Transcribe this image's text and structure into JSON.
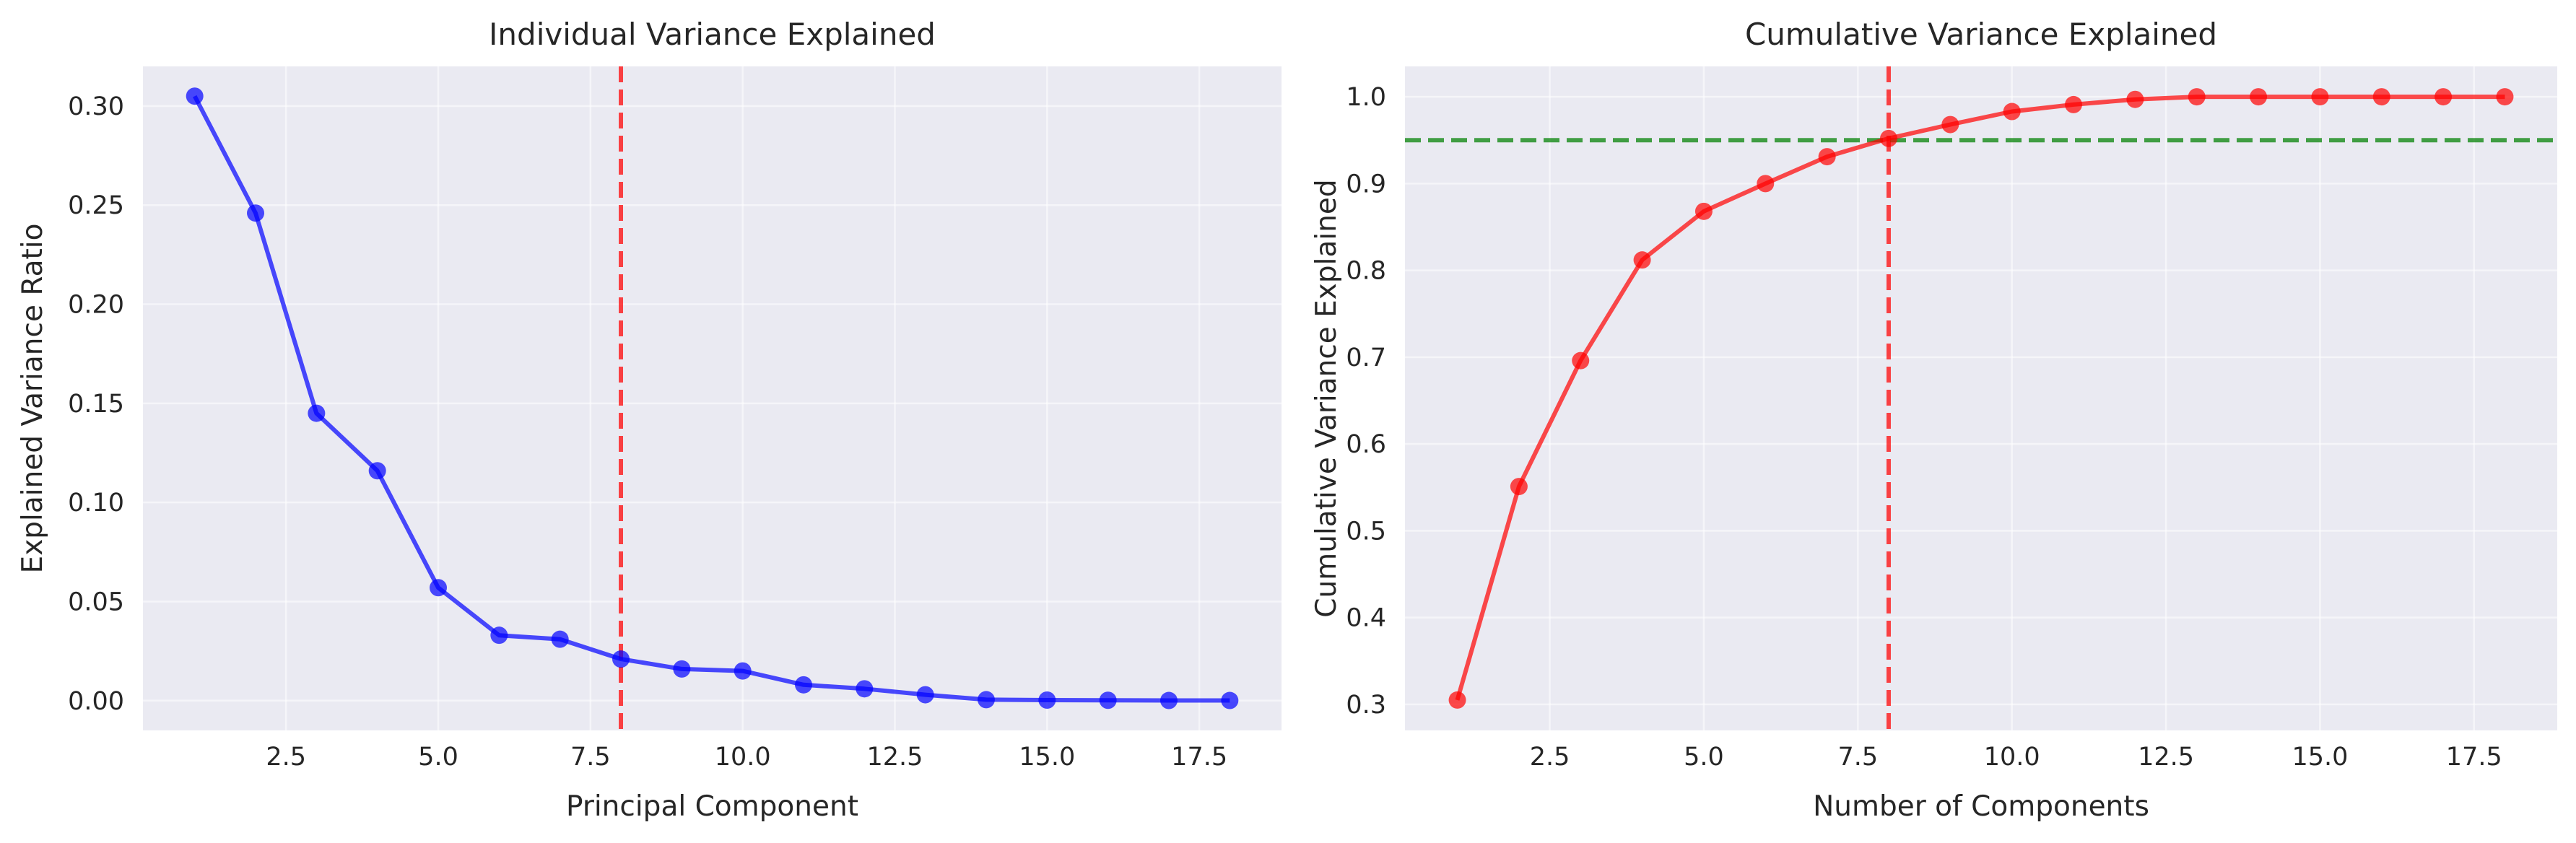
{
  "chart_data": [
    {
      "type": "line",
      "title": "Individual Variance Explained",
      "xlabel": "Principal Component",
      "ylabel": "Explained Variance Ratio",
      "xlim": [
        0.15,
        18.85
      ],
      "ylim": [
        -0.015,
        0.32
      ],
      "xticks": [
        2.5,
        5.0,
        7.5,
        10.0,
        12.5,
        15.0,
        17.5
      ],
      "xtick_labels": [
        "2.5",
        "5.0",
        "7.5",
        "10.0",
        "12.5",
        "15.0",
        "17.5"
      ],
      "yticks": [
        0.0,
        0.05,
        0.1,
        0.15,
        0.2,
        0.25,
        0.3
      ],
      "ytick_labels": [
        "0.00",
        "0.05",
        "0.10",
        "0.15",
        "0.20",
        "0.25",
        "0.30"
      ],
      "grid": true,
      "series": [
        {
          "color": "#0000ff",
          "x": [
            1,
            2,
            3,
            4,
            5,
            6,
            7,
            8,
            9,
            10,
            11,
            12,
            13,
            14,
            15,
            16,
            17,
            18
          ],
          "values": [
            0.305,
            0.246,
            0.145,
            0.116,
            0.057,
            0.033,
            0.031,
            0.021,
            0.016,
            0.015,
            0.008,
            0.006,
            0.003,
            0.0005,
            0.0003,
            0.0002,
            0.0001,
            0.0001
          ]
        }
      ],
      "reference_lines": [
        {
          "orientation": "vertical",
          "value": 8,
          "color": "#ff0000",
          "style": "dashed"
        }
      ]
    },
    {
      "type": "line",
      "title": "Cumulative Variance Explained",
      "xlabel": "Number of Components",
      "ylabel": "Cumulative Variance Explained",
      "xlim": [
        0.15,
        18.85
      ],
      "ylim": [
        0.27,
        1.035
      ],
      "xticks": [
        2.5,
        5.0,
        7.5,
        10.0,
        12.5,
        15.0,
        17.5
      ],
      "xtick_labels": [
        "2.5",
        "5.0",
        "7.5",
        "10.0",
        "12.5",
        "15.0",
        "17.5"
      ],
      "yticks": [
        0.3,
        0.4,
        0.5,
        0.6,
        0.7,
        0.8,
        0.9,
        1.0
      ],
      "ytick_labels": [
        "0.3",
        "0.4",
        "0.5",
        "0.6",
        "0.7",
        "0.8",
        "0.9",
        "1.0"
      ],
      "grid": true,
      "series": [
        {
          "color": "#ff0000",
          "x": [
            1,
            2,
            3,
            4,
            5,
            6,
            7,
            8,
            9,
            10,
            11,
            12,
            13,
            14,
            15,
            16,
            17,
            18
          ],
          "values": [
            0.305,
            0.551,
            0.696,
            0.812,
            0.868,
            0.9,
            0.931,
            0.952,
            0.968,
            0.983,
            0.991,
            0.997,
            1.0,
            1.0,
            1.0,
            1.0,
            1.0,
            1.0
          ]
        }
      ],
      "reference_lines": [
        {
          "orientation": "vertical",
          "value": 8,
          "color": "#ff0000",
          "style": "dashed"
        },
        {
          "orientation": "horizontal",
          "value": 0.95,
          "color": "#008000",
          "style": "dashed"
        }
      ]
    }
  ]
}
